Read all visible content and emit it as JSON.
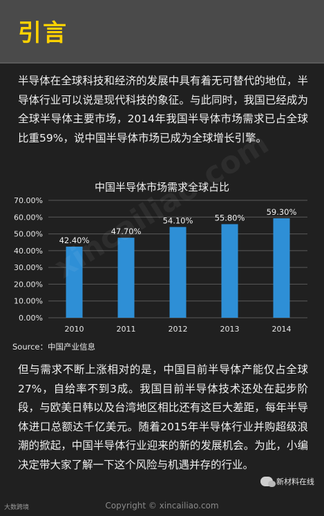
{
  "header": {
    "title": "引言"
  },
  "intro_text": "半导体在全球科技和经济的发展中具有着无可替代的地位，半导体行业可以说是现代科技的象征。与此同时，我国已经成为全球半导体主要市场，2014年我国半导体市场需求已占全球比重59%，说中国半导体市场已成为全球增长引擎。",
  "outro_text": "但与需求不断上涨相对的是，中国目前半导体产能仅占全球27%，自给率不到3成。我国目前半导体技术还处在起步阶段，与欧美日韩以及台湾地区相比还有这巨大差距，每年半导体进口总额达千亿美元。随着2015年半导体行业并购超级浪潮的掀起，中国半导体行业迎来的新的发展机会。为此，小编决定带大家了解一下这个风险与机遇并存的行业。",
  "source": "Source：中国产业信息",
  "watermark": "xincailiao.com",
  "footer": {
    "left": "大数跨境",
    "copyright": "Copyright © xincailiao.com",
    "account": "新材料在线"
  },
  "colors": {
    "bar": "#2e8fd6",
    "header_title": "#ffd200",
    "background": "#202020"
  },
  "chart_data": {
    "type": "bar",
    "title": "中国半导体市场需求全球占比",
    "categories": [
      "2010",
      "2011",
      "2012",
      "2013",
      "2014"
    ],
    "values": [
      42.4,
      47.7,
      54.1,
      55.8,
      59.3
    ],
    "data_labels": [
      "42.40%",
      "47.70%",
      "54.10%",
      "55.80%",
      "59.30%"
    ],
    "y_ticks": [
      "0.00%",
      "10.00%",
      "20.00%",
      "30.00%",
      "40.00%",
      "50.00%",
      "60.00%",
      "70.00%"
    ],
    "ylim": [
      0,
      70
    ],
    "xlabel": "",
    "ylabel": "",
    "grid": true,
    "legend": "none"
  }
}
